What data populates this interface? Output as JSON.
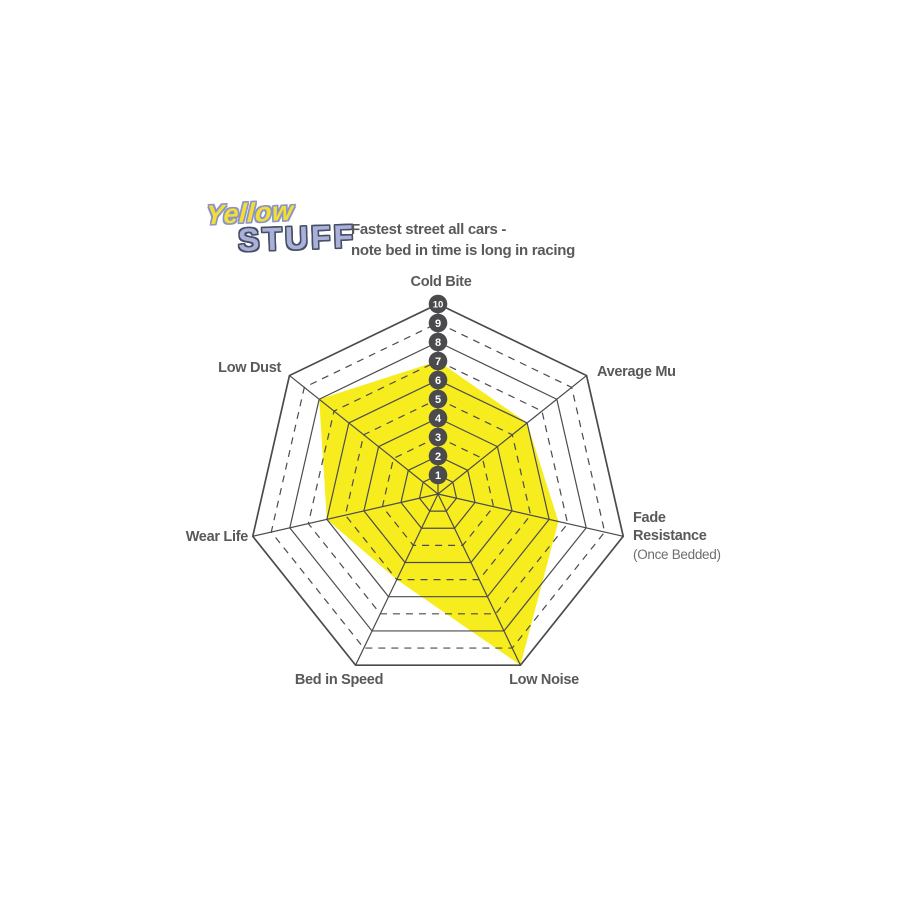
{
  "header": {
    "logo_line1": "Yellow",
    "logo_line2": "STUFF",
    "description_line1": "Fastest street all cars -",
    "description_line2": "note bed in time is long in racing"
  },
  "chart_data": {
    "type": "radar",
    "series": [
      {
        "name": "Yellowstuff",
        "values": [
          7,
          6,
          6.5,
          10,
          5,
          6,
          8
        ]
      }
    ],
    "axes": [
      {
        "label": "Cold Bite",
        "value": 7
      },
      {
        "label": "Average Mu",
        "value": 6
      },
      {
        "label": "Fade Resistance",
        "sublabel": "(Once Bedded)",
        "value": 6.5
      },
      {
        "label": "Low Noise",
        "value": 10
      },
      {
        "label": "Bed in Speed",
        "value": 5
      },
      {
        "label": "Wear Life",
        "value": 6
      },
      {
        "label": "Low Dust",
        "value": 8
      }
    ],
    "scale": {
      "min": 1,
      "max": 10,
      "tick_labels": [
        "1",
        "2",
        "3",
        "4",
        "5",
        "6",
        "7",
        "8",
        "9",
        "10"
      ]
    },
    "grid": {
      "solid_rings": "even values and ring 1 and outer ring",
      "dashed_rings": "odd values 3,5,7,9",
      "legend_position": "none"
    },
    "colors": {
      "series_fill": "#F7ED1E",
      "grid_line": "#4B4B4D",
      "scale_marker_fill": "#4B4B4D",
      "scale_marker_text": "#FFFFFF",
      "label_text": "#58595B"
    }
  }
}
